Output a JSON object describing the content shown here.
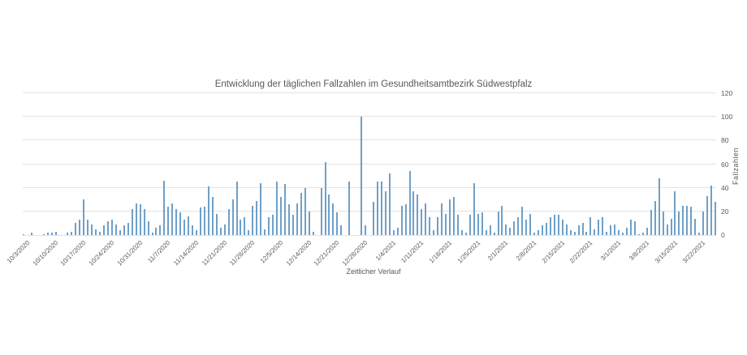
{
  "title": "Entwicklung der täglichen Fallzahlen im Gesundheitsamtbezirk Südwestpfalz",
  "colors": {
    "bar": "#6fa0c8",
    "grid": "#e3e3e3",
    "text": "#595959",
    "background": "#ffffff"
  },
  "chart_data": {
    "type": "bar",
    "title": "Entwicklung der täglichen Fallzahlen im Gesundheitsamtbezirk Südwestpfalz",
    "xlabel": "Zeitlicher Verlauf",
    "ylabel": "Fallzahlen",
    "ylim": [
      0,
      120
    ],
    "y_ticks": [
      0,
      20,
      40,
      60,
      80,
      100,
      120
    ],
    "grid": true,
    "legend": false,
    "y_axis_side": "right",
    "x_tick_every": 7,
    "x_tick_labels": [
      "10/3/2020",
      "10/10/2020",
      "10/17/2020",
      "10/24/2020",
      "10/31/2020",
      "11/7/2020",
      "11/14/2020",
      "11/21/2020",
      "11/28/2020",
      "12/5/2020",
      "12/14/2020",
      "12/21/2020",
      "12/28/2020",
      "1/4/2021",
      "1/11/2021",
      "1/18/2021",
      "1/25/2021",
      "2/1/2021",
      "2/8/2021",
      "2/15/2021",
      "2/22/2021",
      "3/1/2021",
      "3/8/2021",
      "3/15/2021",
      "3/22/2021"
    ],
    "values": [
      1,
      0,
      2,
      0,
      0,
      1,
      2,
      2,
      3,
      0,
      0,
      2,
      3,
      10,
      13,
      30,
      13,
      9,
      5,
      3,
      8,
      12,
      13,
      9,
      4,
      8,
      10,
      22,
      27,
      26,
      22,
      12,
      2,
      6,
      8,
      46,
      24,
      27,
      22,
      19,
      13,
      16,
      8,
      4,
      23,
      24,
      41,
      32,
      18,
      6,
      9,
      22,
      30,
      45,
      13,
      15,
      4,
      25,
      29,
      44,
      5,
      15,
      17,
      45,
      32,
      43,
      26,
      17,
      27,
      36,
      40,
      20,
      3,
      0,
      40,
      62,
      34,
      27,
      19,
      8,
      0,
      45,
      0,
      0,
      100,
      8,
      0,
      28,
      45,
      45,
      37,
      52,
      4,
      6,
      25,
      26,
      54,
      37,
      34,
      22,
      27,
      15,
      4,
      15,
      27,
      18,
      30,
      32,
      17,
      4,
      2,
      17,
      44,
      18,
      19,
      4,
      8,
      2,
      20,
      25,
      9,
      6,
      12,
      15,
      24,
      13,
      18,
      2,
      4,
      8,
      10,
      15,
      17,
      17,
      13,
      9,
      4,
      3,
      8,
      10,
      3,
      15,
      5,
      13,
      15,
      3,
      8,
      9,
      4,
      2,
      6,
      13,
      12,
      1,
      2,
      6,
      21,
      29,
      48,
      20,
      9,
      14,
      37,
      20,
      25,
      25,
      24,
      14,
      2,
      20,
      33,
      42,
      28
    ]
  }
}
